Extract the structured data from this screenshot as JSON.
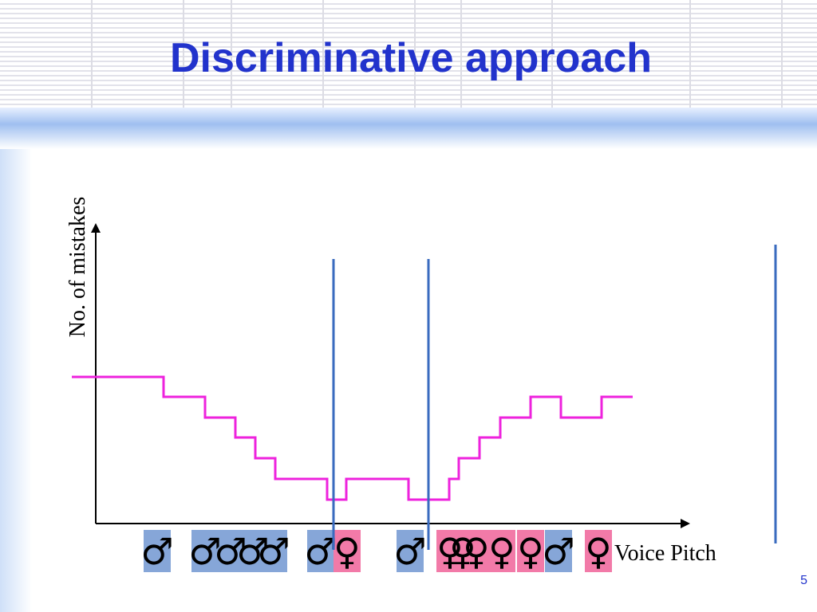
{
  "title": "Discriminative approach",
  "y_label": "No. of mistakes",
  "x_label": "Voice Pitch",
  "page_number": "5",
  "markers": [
    "♂",
    "♂",
    "♂",
    "♂",
    "♂",
    "♂",
    "♀",
    "♂",
    "♀",
    "♀",
    "♀",
    "♀",
    "♀",
    "♂",
    "♀"
  ]
}
